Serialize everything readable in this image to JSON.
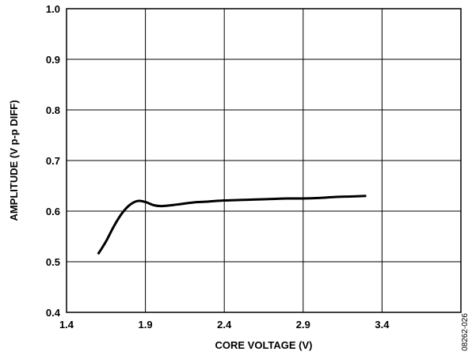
{
  "chart_data": {
    "type": "line",
    "title": "",
    "xlabel": "CORE VOLTAGE (V)",
    "ylabel": "AMPLITUDE (V p-p DIFF)",
    "xlim": [
      1.4,
      3.9
    ],
    "ylim": [
      0.4,
      1.0
    ],
    "xticks": [
      1.4,
      1.9,
      2.4,
      2.9,
      3.4
    ],
    "xtick_labels": [
      "1.4",
      "1.9",
      "2.4",
      "2.9",
      "3.4"
    ],
    "yticks": [
      0.4,
      0.5,
      0.6,
      0.7,
      0.8,
      0.9,
      1.0
    ],
    "ytick_labels": [
      "0.4",
      "0.5",
      "0.6",
      "0.7",
      "0.8",
      "0.9",
      "1.0"
    ],
    "grid": true,
    "series": [
      {
        "x": [
          1.6,
          1.65,
          1.7,
          1.75,
          1.8,
          1.85,
          1.9,
          1.95,
          2.0,
          2.1,
          2.2,
          2.3,
          2.4,
          2.5,
          2.6,
          2.7,
          2.8,
          2.9,
          3.0,
          3.1,
          3.2,
          3.3
        ],
        "y": [
          0.515,
          0.54,
          0.57,
          0.595,
          0.612,
          0.62,
          0.618,
          0.612,
          0.61,
          0.613,
          0.617,
          0.619,
          0.621,
          0.622,
          0.623,
          0.624,
          0.625,
          0.625,
          0.626,
          0.628,
          0.629,
          0.63
        ],
        "color": "#000000"
      }
    ]
  },
  "figure_id": "08262-026"
}
